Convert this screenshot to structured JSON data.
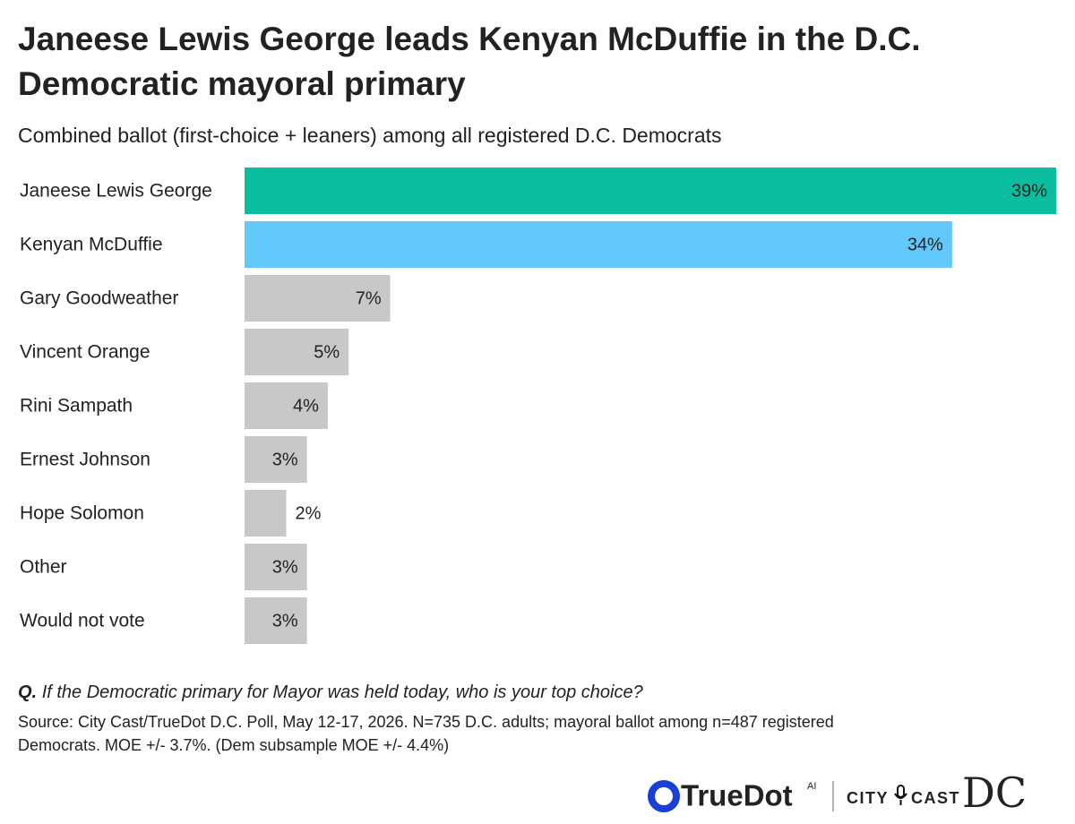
{
  "chart_data": {
    "type": "barh",
    "title_lines": [
      "Janeese Lewis George leads Kenyan McDuffie in the D.C.",
      "Democratic mayoral primary"
    ],
    "subtitle": "Combined ballot (first-choice + leaners) among all registered D.C. Democrats",
    "categories": [
      "Janeese Lewis George",
      "Kenyan McDuffie",
      "Gary Goodweather",
      "Vincent Orange",
      "Rini Sampath",
      "Ernest Johnson",
      "Hope Solomon",
      "Other",
      "Would not vote"
    ],
    "values": [
      39,
      34,
      7,
      5,
      4,
      3,
      2,
      3,
      3
    ],
    "value_labels": [
      "39%",
      "34%",
      "7%",
      "5%",
      "4%",
      "3%",
      "2%",
      "3%",
      "3%"
    ],
    "colors": [
      "#0bbd9f",
      "#62c8fa",
      "#c8c8c8",
      "#c8c8c8",
      "#c8c8c8",
      "#c8c8c8",
      "#c8c8c8",
      "#c8c8c8",
      "#c8c8c8"
    ],
    "question": {
      "prefix": "Q.",
      "text": "If the Democratic primary for Mayor was held today, who is your top choice?"
    },
    "source_lines": [
      "Source: City Cast/TrueDot D.C. Poll, May 12-17, 2026. N=735 D.C. adults; mayoral ballot among n=487 registered",
      "Democrats. MOE +/- 3.7%. (Dem subsample MOE +/- 4.4%)"
    ],
    "logos": {
      "truedot": "TrueDot",
      "ai": "AI",
      "city": "CITY",
      "cast": "CAST",
      "dc": "DC"
    }
  }
}
